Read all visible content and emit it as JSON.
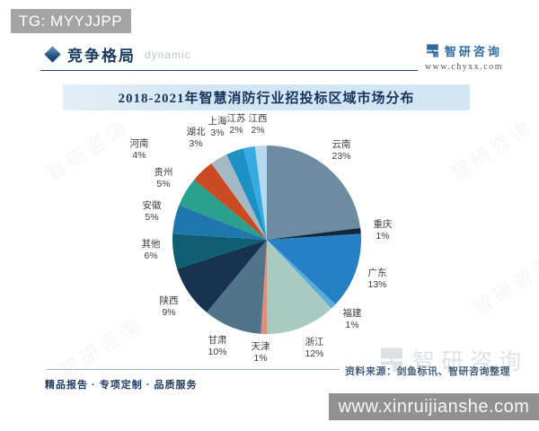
{
  "top_badge": {
    "text": "TG: MYYJJPP"
  },
  "header": {
    "section_title": "竞争格局",
    "watermark_word": "dynamic",
    "brand_name": "智研咨询",
    "brand_site": "www.chyxx.com"
  },
  "chart_data": {
    "type": "pie",
    "title": "2018-2021年智慧消防行业招投标区域市场分布",
    "value_unit": "%",
    "legend_position": "none",
    "start_angle_deg": -90,
    "direction": "clockwise",
    "slices": [
      {
        "region": "云南",
        "value": 23,
        "color": "#6d8ca1"
      },
      {
        "region": "重庆",
        "value": 1,
        "color": "#14293d"
      },
      {
        "region": "广东",
        "value": 13,
        "color": "#2580c4"
      },
      {
        "region": "福建",
        "value": 1,
        "color": "#58abdc"
      },
      {
        "region": "浙江",
        "value": 12,
        "color": "#a7cbc0"
      },
      {
        "region": "天津",
        "value": 1,
        "color": "#e28e76"
      },
      {
        "region": "甘肃",
        "value": 10,
        "color": "#51748a"
      },
      {
        "region": "陕西",
        "value": 9,
        "color": "#163450"
      },
      {
        "region": "其他",
        "value": 6,
        "color": "#0f5e73"
      },
      {
        "region": "安徽",
        "value": 5,
        "color": "#1e78ae"
      },
      {
        "region": "贵州",
        "value": 5,
        "color": "#2aa18f"
      },
      {
        "region": "河南",
        "value": 4,
        "color": "#ca4a21"
      },
      {
        "region": "湖北",
        "value": 3,
        "color": "#a3bac6"
      },
      {
        "region": "上海",
        "value": 3,
        "color": "#1d91c6"
      },
      {
        "region": "江苏",
        "value": 2,
        "color": "#36abe2"
      },
      {
        "region": "江西",
        "value": 2,
        "color": "#b7d9ee"
      }
    ]
  },
  "footer": {
    "source_text": "资料来源：剑鱼标讯、智研咨询整理",
    "slogan": "精品报告 · 专项定制 · 品质服务",
    "watermark_brand": "智研咨询",
    "bottom_bar_text": "www.xinruijianshe.com"
  },
  "colors": {
    "badge_bg": "#a4a4a4",
    "banner_bg": "#d4e6f3",
    "header_line": "#1c4971",
    "brand_blue": "#2d6ca3",
    "bar_bg": "#919191",
    "source_line": "#9fb3c2",
    "text_dark": "#173a5e"
  }
}
